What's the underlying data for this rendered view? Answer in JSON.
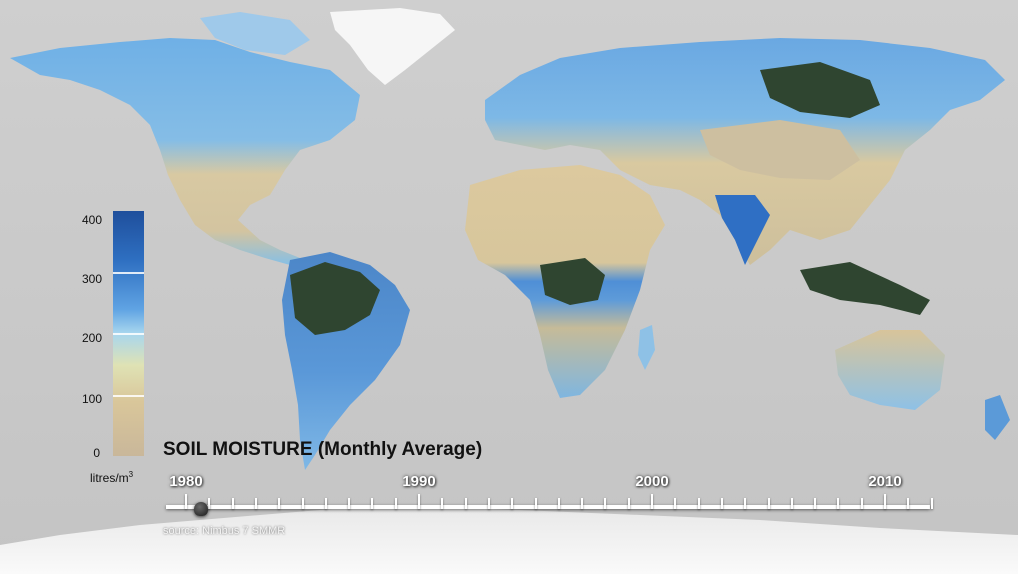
{
  "title": "SOIL MOISTURE (Monthly Average)",
  "source": "source: Nimbus 7 SMMR",
  "legend": {
    "unit_prefix": "litres/m",
    "unit_exponent": "3",
    "labels": [
      "400",
      "300",
      "200",
      "100",
      "0"
    ],
    "colors": {
      "max": "#1f4f9c",
      "high": "#5fa3e3",
      "mid": "#a8d6ee",
      "low": "#dfe2b4",
      "min": "#c9b79a"
    }
  },
  "timeline": {
    "decades": [
      "1980",
      "1990",
      "2000",
      "2010"
    ],
    "current_year": 1980
  },
  "map_colors": {
    "ocean": "#c8c8c8",
    "ice": "#f5f5f5",
    "dry": "#d8c8a0",
    "moist": "#7fb8e6",
    "wet": "#3a78c8",
    "forest": "#2e3f2a"
  }
}
